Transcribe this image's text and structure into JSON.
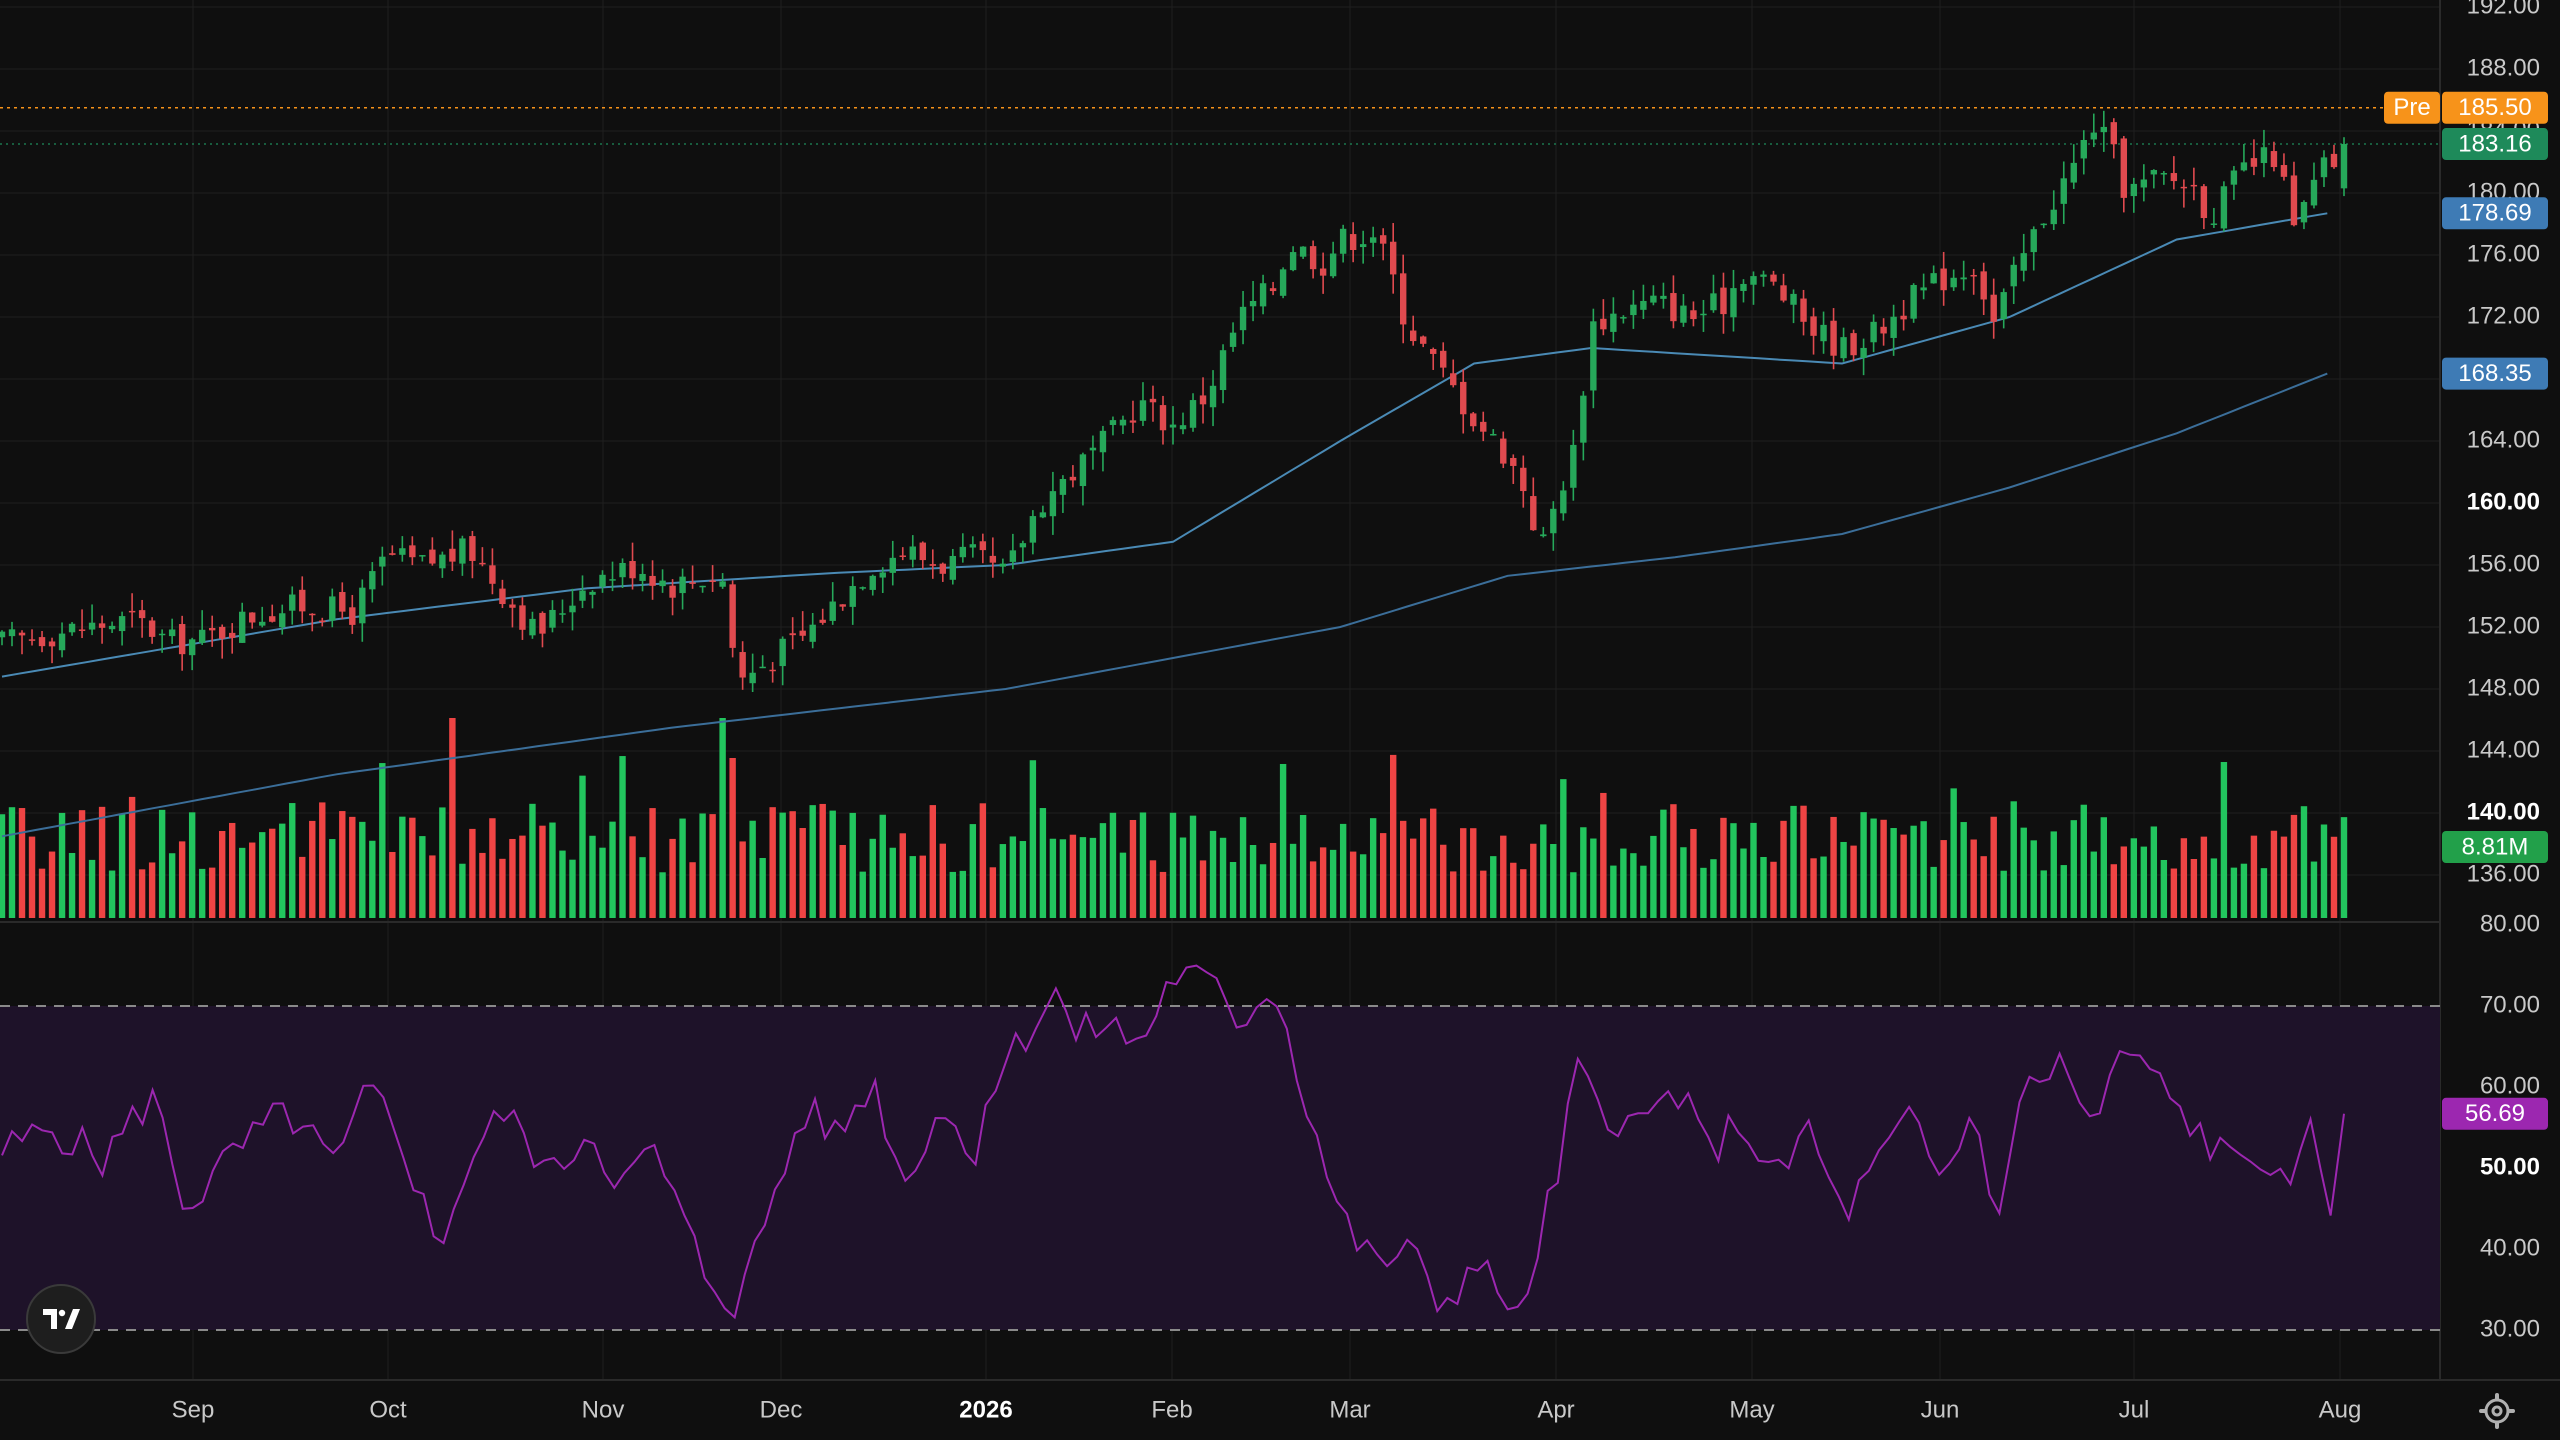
{
  "colors": {
    "background": "#0f0f0f",
    "up": "#26a85a",
    "down": "#e04a4f",
    "volume_up": "#22c55e",
    "volume_down": "#ef4444",
    "ma50": "#4a8ab5",
    "ma200": "#3b6e99",
    "rsi_line": "#9c27b0",
    "rsi_band": "#1e1229",
    "pre_line": "#f7931a"
  },
  "logo": {
    "icon": "tradingview-logo-icon",
    "text": "TV"
  },
  "settings": {
    "icon": "gear-icon"
  },
  "chart_data": [
    {
      "type": "candlestick",
      "title": "",
      "x_axis": {
        "labels": [
          "Sep",
          "Oct",
          "Nov",
          "Dec",
          "2026",
          "Feb",
          "Mar",
          "Apr",
          "May",
          "Jun",
          "Jul",
          "Aug"
        ],
        "bold": [
          "2026"
        ]
      },
      "y_axis": {
        "range": [
          136,
          192
        ],
        "ticks": [
          "192.00",
          "188.00",
          "184.00",
          "180.00",
          "176.00",
          "172.00",
          "168.00",
          "164.00",
          "160.00",
          "156.00",
          "152.00",
          "148.00",
          "144.00",
          "140.00",
          "136.00"
        ],
        "bold_ticks": [
          "160.00",
          "140.00"
        ]
      },
      "grid": true,
      "price_tags": [
        {
          "label": "Pre",
          "value": "185.50",
          "color": "#f7931a"
        },
        {
          "label": "",
          "value": "183.16",
          "color": "#1e8a5a"
        },
        {
          "label": "",
          "value": "178.69",
          "color": "#3e7bb5"
        },
        {
          "label": "",
          "value": "168.35",
          "color": "#3e7bb5"
        }
      ],
      "close_path": [
        [
          0,
          151.0
        ],
        [
          8,
          151.8
        ],
        [
          16,
          152.5
        ],
        [
          20,
          151.0
        ],
        [
          24,
          151.2
        ],
        [
          30,
          152.8
        ],
        [
          36,
          153.4
        ],
        [
          42,
          152.9
        ],
        [
          46,
          156.6
        ],
        [
          50,
          156.0
        ],
        [
          56,
          157.0
        ],
        [
          60,
          154.2
        ],
        [
          64,
          151.5
        ],
        [
          70,
          155.0
        ],
        [
          76,
          156.0
        ],
        [
          80,
          154.7
        ],
        [
          86,
          155.5
        ],
        [
          88,
          148.5
        ],
        [
          92,
          150.0
        ],
        [
          96,
          151.5
        ],
        [
          100,
          153.8
        ],
        [
          104,
          156.0
        ],
        [
          108,
          157.0
        ],
        [
          112,
          156.0
        ],
        [
          116,
          156.5
        ],
        [
          120,
          155.3
        ],
        [
          124,
          160.0
        ],
        [
          128,
          162.0
        ],
        [
          132,
          164.0
        ],
        [
          136,
          166.5
        ],
        [
          140,
          165.0
        ],
        [
          144,
          167.0
        ],
        [
          148,
          172.0
        ],
        [
          152,
          174.0
        ],
        [
          154,
          176.8
        ],
        [
          158,
          175.5
        ],
        [
          160,
          177.0
        ],
        [
          164,
          177.5
        ],
        [
          166,
          175.0
        ],
        [
          168,
          171.5
        ],
        [
          172,
          168.5
        ],
        [
          176,
          165.5
        ],
        [
          180,
          163.0
        ],
        [
          182,
          161.0
        ],
        [
          184,
          157.0
        ],
        [
          186,
          160.5
        ],
        [
          188,
          163.5
        ],
        [
          190,
          171.5
        ],
        [
          194,
          172.5
        ],
        [
          198,
          173.0
        ],
        [
          202,
          172.0
        ],
        [
          206,
          173.0
        ],
        [
          208,
          175.0
        ],
        [
          212,
          174.0
        ],
        [
          216,
          171.5
        ],
        [
          220,
          170.0
        ],
        [
          224,
          171.0
        ],
        [
          228,
          173.0
        ],
        [
          232,
          174.5
        ],
        [
          236,
          175.5
        ],
        [
          238,
          171.5
        ],
        [
          240,
          174.0
        ],
        [
          244,
          178.5
        ],
        [
          248,
          182.0
        ],
        [
          250,
          184.5
        ],
        [
          252,
          183.0
        ],
        [
          254,
          180.0
        ],
        [
          258,
          181.0
        ],
        [
          262,
          180.5
        ],
        [
          264,
          178.5
        ],
        [
          268,
          181.5
        ],
        [
          272,
          182.5
        ],
        [
          274,
          177.5
        ],
        [
          276,
          180.0
        ],
        [
          278,
          182.0
        ]
      ],
      "candle_count": 235,
      "series": [
        {
          "name": "",
          "type": "moving_average",
          "points": [
            [
              0,
              148.8
            ],
            [
              40,
              152.5
            ],
            [
              70,
              154.5
            ],
            [
              100,
              155.5
            ],
            [
              120,
              156.0
            ],
            [
              140,
              157.5
            ],
            [
              160,
              164.0
            ],
            [
              176,
              169.0
            ],
            [
              190,
              170.0
            ],
            [
              220,
              169.0
            ],
            [
              240,
              172.0
            ],
            [
              260,
              177.0
            ],
            [
              278,
              178.69
            ]
          ]
        },
        {
          "name": "",
          "type": "moving_average",
          "points": [
            [
              0,
              138.5
            ],
            [
              40,
              142.5
            ],
            [
              80,
              145.5
            ],
            [
              120,
              148.0
            ],
            [
              160,
              152.0
            ],
            [
              180,
              155.3
            ],
            [
              200,
              156.5
            ],
            [
              220,
              158.0
            ],
            [
              240,
              161.0
            ],
            [
              260,
              164.5
            ],
            [
              278,
              168.35
            ]
          ]
        }
      ],
      "pre_market": 185.5,
      "last": 183.16
    },
    {
      "type": "bar",
      "title": "",
      "last_value": "8.81M",
      "bar_count": 235,
      "note": "volume bars colored by candle direction"
    },
    {
      "type": "line",
      "title": "",
      "y_axis": {
        "range": [
          30,
          80
        ],
        "ticks": [
          "80.00",
          "70.00",
          "60.00",
          "50.00",
          "40.00",
          "30.00"
        ],
        "bold_ticks": [
          "50.00"
        ]
      },
      "bands": [
        30,
        70
      ],
      "last_value": "56.69",
      "points": [
        [
          0,
          52
        ],
        [
          6,
          55
        ],
        [
          12,
          51
        ],
        [
          18,
          59
        ],
        [
          22,
          45
        ],
        [
          28,
          52
        ],
        [
          34,
          57
        ],
        [
          40,
          50
        ],
        [
          44,
          60
        ],
        [
          48,
          53
        ],
        [
          52,
          40
        ],
        [
          56,
          51
        ],
        [
          60,
          57
        ],
        [
          66,
          49
        ],
        [
          70,
          55
        ],
        [
          74,
          48
        ],
        [
          78,
          52
        ],
        [
          84,
          37
        ],
        [
          88,
          33
        ],
        [
          92,
          46
        ],
        [
          96,
          57
        ],
        [
          100,
          54
        ],
        [
          104,
          61
        ],
        [
          108,
          48
        ],
        [
          112,
          58
        ],
        [
          116,
          51
        ],
        [
          118,
          60
        ],
        [
          122,
          66
        ],
        [
          126,
          72
        ],
        [
          128,
          66
        ],
        [
          132,
          68
        ],
        [
          136,
          65
        ],
        [
          140,
          74
        ],
        [
          144,
          73
        ],
        [
          148,
          68
        ],
        [
          152,
          73
        ],
        [
          156,
          58
        ],
        [
          160,
          44
        ],
        [
          164,
          38
        ],
        [
          168,
          40
        ],
        [
          172,
          33
        ],
        [
          176,
          38
        ],
        [
          180,
          34
        ],
        [
          182,
          30
        ],
        [
          184,
          43
        ],
        [
          186,
          48
        ],
        [
          188,
          62
        ],
        [
          192,
          57
        ],
        [
          196,
          55
        ],
        [
          200,
          60
        ],
        [
          204,
          52
        ],
        [
          208,
          56
        ],
        [
          212,
          48
        ],
        [
          216,
          55
        ],
        [
          220,
          44
        ],
        [
          224,
          50
        ],
        [
          228,
          56
        ],
        [
          232,
          48
        ],
        [
          236,
          58
        ],
        [
          238,
          43
        ],
        [
          242,
          60
        ],
        [
          246,
          63
        ],
        [
          250,
          55
        ],
        [
          254,
          65
        ],
        [
          258,
          60
        ],
        [
          262,
          55
        ],
        [
          266,
          51
        ],
        [
          270,
          52
        ],
        [
          274,
          45
        ],
        [
          276,
          58
        ],
        [
          278,
          41
        ],
        [
          280,
          56.69
        ]
      ]
    }
  ]
}
